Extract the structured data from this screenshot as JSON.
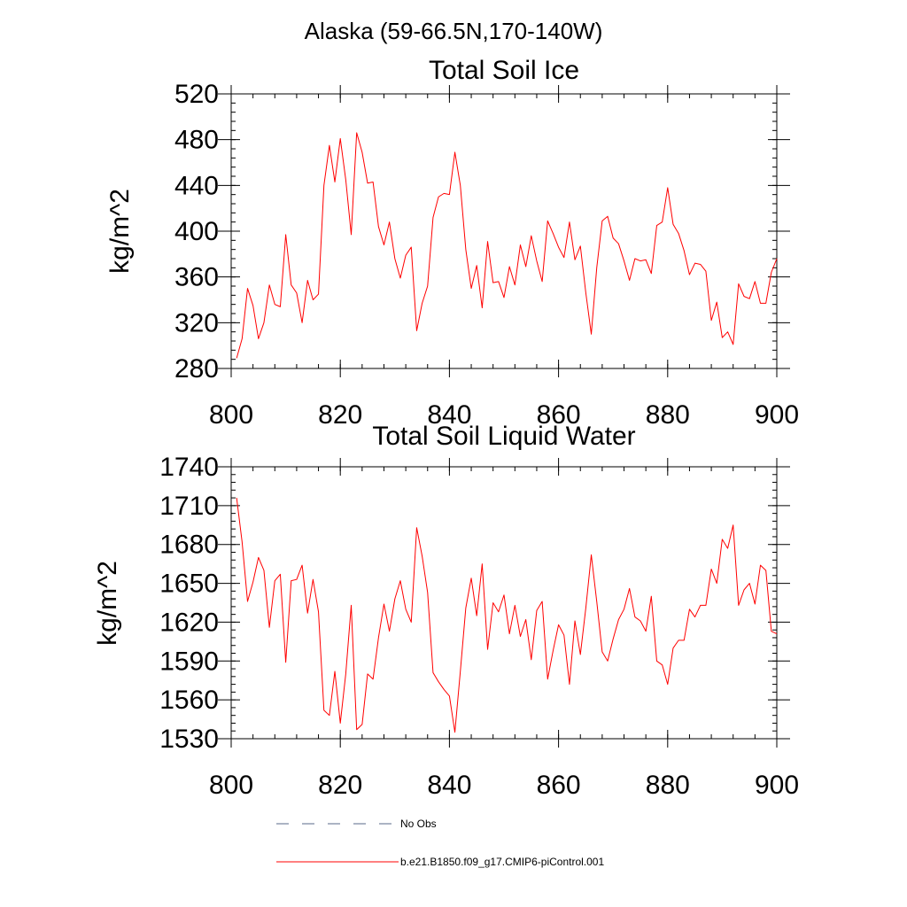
{
  "figure_title": "Alaska (59-66.5N,170-140W)",
  "legend": {
    "items": [
      {
        "label": "No Obs",
        "style": "dashed",
        "color": "#5a6a8a"
      },
      {
        "label": "b.e21.B1850.f09_g17.CMIP6-piControl.001",
        "style": "solid",
        "color": "#ff0000"
      }
    ]
  },
  "chart_data": [
    {
      "type": "line",
      "title": "Total Soil Ice",
      "ylabel": "kg/m^2",
      "xlabel": "",
      "xlim": [
        800,
        900
      ],
      "ylim": [
        280,
        520
      ],
      "xticks": [
        800,
        820,
        840,
        860,
        880,
        900
      ],
      "yticks": [
        280,
        320,
        360,
        400,
        440,
        480,
        520
      ],
      "x_start": 801,
      "series": [
        {
          "color": "#ff0000",
          "values": [
            289,
            306,
            350,
            335,
            306,
            320,
            353,
            336,
            334,
            397,
            353,
            346,
            320,
            357,
            340,
            345,
            440,
            475,
            443,
            481,
            445,
            397,
            486,
            469,
            442,
            443,
            404,
            388,
            408,
            376,
            359,
            379,
            386,
            313,
            337,
            352,
            412,
            430,
            433,
            432,
            469,
            440,
            384,
            350,
            370,
            333,
            391,
            355,
            356,
            342,
            369,
            353,
            388,
            369,
            396,
            374,
            356,
            409,
            398,
            386,
            377,
            408,
            375,
            387,
            346,
            310,
            368,
            409,
            413,
            394,
            389,
            374,
            357,
            376,
            374,
            375,
            363,
            405,
            408,
            438,
            406,
            398,
            383,
            362,
            372,
            371,
            365,
            322,
            338,
            307,
            312,
            301,
            354,
            343,
            341,
            356,
            337,
            337,
            364,
            376
          ]
        }
      ]
    },
    {
      "type": "line",
      "title": "Total Soil Liquid Water",
      "ylabel": "kg/m^2",
      "xlabel": "",
      "xlim": [
        800,
        900
      ],
      "ylim": [
        1530,
        1740
      ],
      "xticks": [
        800,
        820,
        840,
        860,
        880,
        900
      ],
      "yticks": [
        1530,
        1560,
        1590,
        1620,
        1650,
        1680,
        1710,
        1740
      ],
      "x_start": 801,
      "series": [
        {
          "color": "#ff0000",
          "values": [
            1716,
            1682,
            1636,
            1651,
            1670,
            1660,
            1616,
            1652,
            1657,
            1589,
            1652,
            1653,
            1664,
            1627,
            1653,
            1628,
            1552,
            1548,
            1582,
            1542,
            1580,
            1633,
            1537,
            1541,
            1580,
            1576,
            1608,
            1634,
            1613,
            1638,
            1652,
            1630,
            1620,
            1693,
            1671,
            1643,
            1581,
            1574,
            1568,
            1563,
            1535,
            1582,
            1631,
            1654,
            1625,
            1665,
            1599,
            1635,
            1628,
            1641,
            1611,
            1633,
            1609,
            1622,
            1591,
            1629,
            1636,
            1576,
            1598,
            1618,
            1610,
            1572,
            1621,
            1595,
            1631,
            1672,
            1636,
            1597,
            1590,
            1607,
            1622,
            1630,
            1646,
            1624,
            1621,
            1613,
            1640,
            1590,
            1587,
            1572,
            1600,
            1606,
            1606,
            1630,
            1624,
            1633,
            1633,
            1661,
            1650,
            1684,
            1677,
            1695,
            1633,
            1645,
            1650,
            1634,
            1664,
            1660,
            1613,
            1611
          ]
        }
      ]
    }
  ]
}
